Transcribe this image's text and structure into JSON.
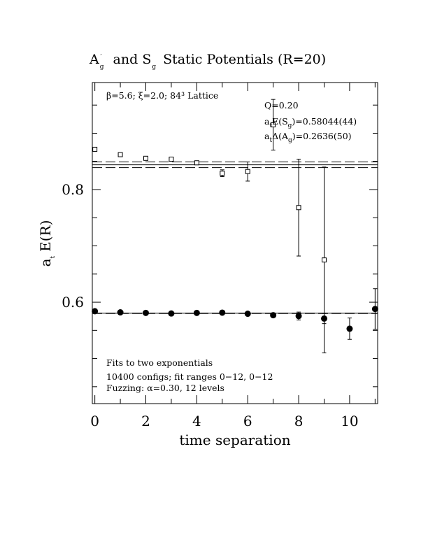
{
  "chart_data": {
    "type": "scatter",
    "title": {
      "part1": "A",
      "part1_sub": "g",
      "part1_prime": "′",
      "part2": "and S",
      "part2_sub": "g",
      "part3": "Static Potentials (R=20)"
    },
    "xlabel": "time separation",
    "ylabel": {
      "main": "E(R)",
      "prefix": "a",
      "prefix_sub": "t"
    },
    "xlim": [
      -0.1,
      11.1
    ],
    "ylim": [
      0.42,
      0.99
    ],
    "x_ticks": [
      0,
      2,
      4,
      6,
      8,
      10
    ],
    "y_ticks": [
      0.6,
      0.8
    ],
    "grid": false,
    "annotations": {
      "top_left": "β=5.6; ξ=2.0; 84³ Lattice",
      "q": "Q=0.20",
      "fit1": {
        "prefix": "a",
        "prefix_sub": "t",
        "main": "E(S",
        "main_sub": "g",
        "tail": ")=0.58044(44)"
      },
      "fit2": {
        "prefix": "a",
        "prefix_sub": "t",
        "main": "Δ(A",
        "main_sub": "g",
        "tail": ")=0.2636(50)"
      },
      "bottom1": "Fits to two exponentials",
      "bottom2": "10400 configs; fit ranges 0−12, 0−12",
      "bottom3": "Fuzzing: α=0.30, 12 levels"
    },
    "fit_lines": [
      {
        "name": "S_g",
        "value": 0.58044,
        "error": 0.00044
      },
      {
        "name": "A'_g",
        "value": 0.844,
        "error": 0.005
      }
    ],
    "series": [
      {
        "name": "A'_g",
        "marker": "open-square",
        "points": [
          {
            "x": 0,
            "y": 0.8715,
            "err": 0.002
          },
          {
            "x": 1,
            "y": 0.862,
            "err": 0.002
          },
          {
            "x": 2,
            "y": 0.8555,
            "err": 0.003
          },
          {
            "x": 3,
            "y": 0.854,
            "err": 0.003
          },
          {
            "x": 4,
            "y": 0.8475,
            "err": 0.003
          },
          {
            "x": 5,
            "y": 0.829,
            "err": 0.006
          },
          {
            "x": 6,
            "y": 0.832,
            "err": 0.017
          },
          {
            "x": 7,
            "y": 0.915,
            "err": 0.045
          },
          {
            "x": 8,
            "y": 0.768,
            "err": 0.086
          },
          {
            "x": 9,
            "y": 0.675,
            "err": 0.165
          }
        ]
      },
      {
        "name": "S_g",
        "marker": "filled-circle",
        "points": [
          {
            "x": 0,
            "y": 0.584,
            "err": 0.002
          },
          {
            "x": 1,
            "y": 0.582,
            "err": 0.002
          },
          {
            "x": 2,
            "y": 0.581,
            "err": 0.002
          },
          {
            "x": 3,
            "y": 0.58,
            "err": 0.002
          },
          {
            "x": 4,
            "y": 0.581,
            "err": 0.002
          },
          {
            "x": 5,
            "y": 0.5815,
            "err": 0.003
          },
          {
            "x": 6,
            "y": 0.5795,
            "err": 0.003
          },
          {
            "x": 7,
            "y": 0.577,
            "err": 0.004
          },
          {
            "x": 8,
            "y": 0.5755,
            "err": 0.007
          },
          {
            "x": 9,
            "y": 0.571,
            "err": 0.009
          },
          {
            "x": 10,
            "y": 0.553,
            "err": 0.019
          },
          {
            "x": 11,
            "y": 0.588,
            "err": 0.036
          }
        ]
      }
    ]
  }
}
